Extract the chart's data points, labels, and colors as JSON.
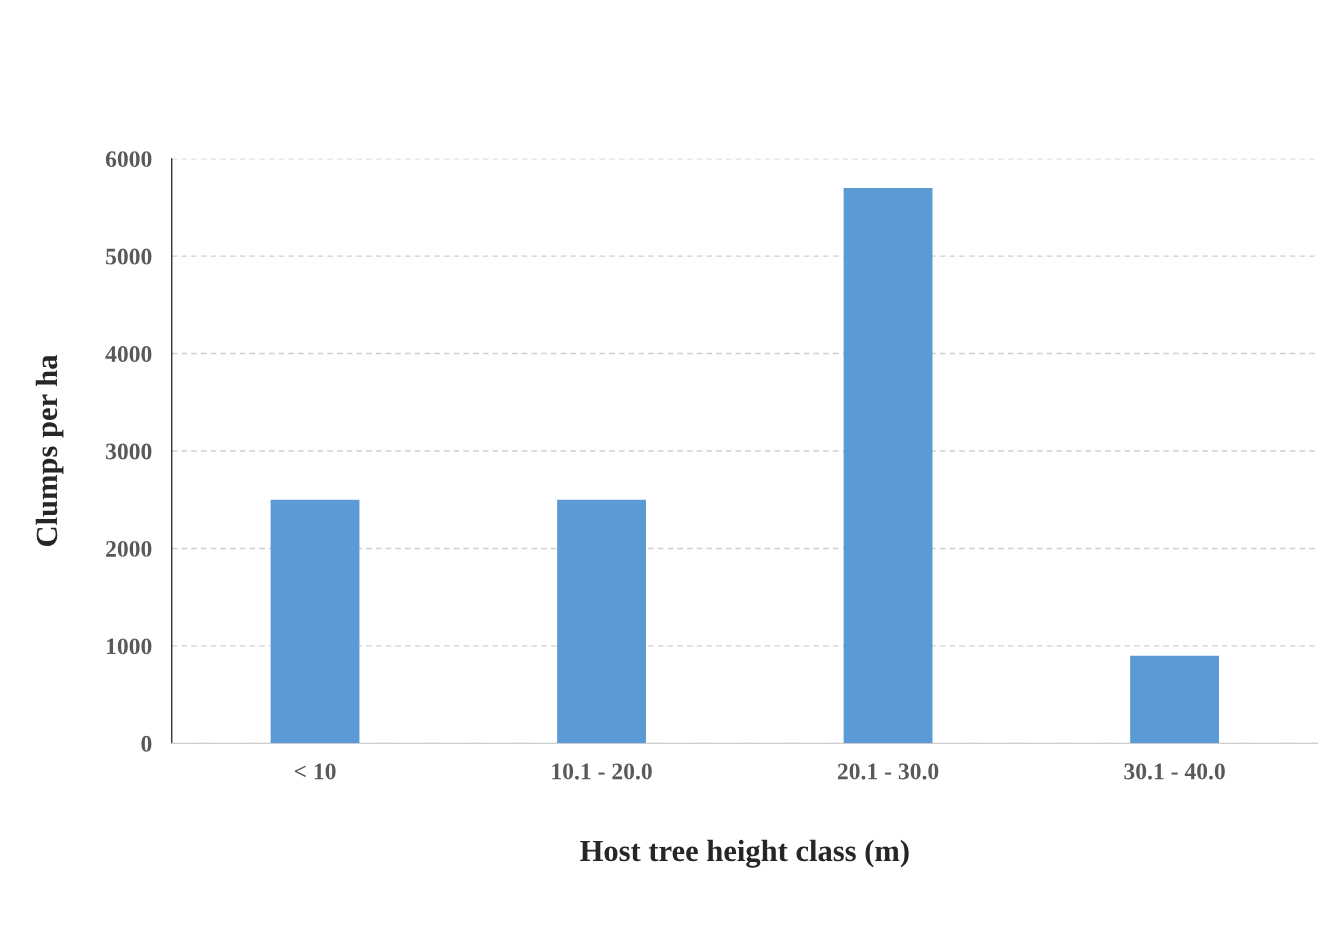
{
  "chart_data": {
    "type": "bar",
    "xlabel": "Host tree height class (m)",
    "ylabel": "Clumps per ha",
    "categories": [
      "< 10",
      "10.1 - 20.0",
      "20.1 - 30.0",
      "30.1 - 40.0"
    ],
    "values": [
      2500,
      2500,
      5700,
      900
    ],
    "color": "#5b9bd5",
    "ylim": [
      0,
      6000
    ],
    "yticks": [
      0,
      1000,
      2000,
      3000,
      4000,
      5000,
      6000
    ],
    "grid": "y"
  }
}
